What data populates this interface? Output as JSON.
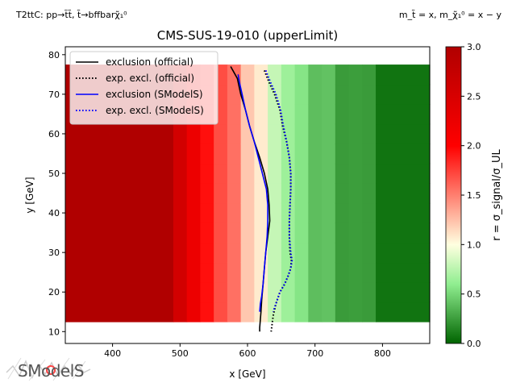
{
  "header": {
    "topleft": "T2ttC: pp→t̃t̃, t̃→bffbarχ̃₁⁰",
    "topright": "m_t̃ = x, m_χ̃₁⁰ = x − y"
  },
  "logo_text": "SModelS",
  "chart_data": {
    "type": "heatmap",
    "title": "CMS-SUS-19-010 (upperLimit)",
    "xlabel": "x [GeV]",
    "ylabel": "y [GeV]",
    "xlim": [
      330,
      870
    ],
    "ylim": [
      7,
      82
    ],
    "xticks": [
      400,
      500,
      600,
      700,
      800
    ],
    "yticks": [
      10,
      20,
      30,
      40,
      50,
      60,
      70,
      80
    ],
    "grid": false,
    "legend_position": "top-left",
    "colorbar": {
      "label": "r = σ_signal/σ_UL",
      "range": [
        0,
        3
      ],
      "ticks": [
        "0.0",
        "0.5",
        "1.0",
        "1.5",
        "2.0",
        "2.5",
        "3.0"
      ],
      "colors": {
        "low": "#006400",
        "mid_low": "#90ee90",
        "mid": "#ffffe0",
        "mid_high": "#ff0000",
        "high": "#b00000"
      }
    },
    "heatmap": {
      "x_range": [
        330,
        870
      ],
      "y_range": [
        12.5,
        77.5
      ],
      "x_step": 20,
      "y_step": 5,
      "column_edges_x": [
        330,
        490,
        510,
        530,
        550,
        570,
        590,
        610,
        630,
        650,
        670,
        690,
        710,
        730,
        750,
        770,
        790,
        870
      ],
      "column_values": [
        3.0,
        2.6,
        2.2,
        2.0,
        1.7,
        1.5,
        1.25,
        1.05,
        0.85,
        0.65,
        0.5,
        0.42,
        0.38,
        0.3,
        0.25,
        0.18,
        0.1
      ]
    },
    "series": [
      {
        "name": "exclusion (official)",
        "style": "solid",
        "color": "#000000",
        "x": [
          575,
          585,
          590,
          597,
          603,
          610,
          618,
          625,
          630,
          632,
          633,
          630,
          627,
          625,
          623,
          621,
          620,
          619,
          618,
          618
        ],
        "y": [
          77,
          74,
          70,
          66,
          62,
          58,
          54,
          50,
          46,
          42,
          38,
          34,
          30,
          26,
          22,
          18,
          15,
          13,
          11,
          10
        ]
      },
      {
        "name": "exp. excl. (official)",
        "style": "dotted",
        "color": "#000000",
        "x": [
          625,
          632,
          640,
          648,
          652,
          658,
          662,
          664,
          664,
          663,
          662,
          662,
          663,
          665,
          664,
          660,
          655,
          648,
          642,
          638,
          635
        ],
        "y": [
          76,
          73,
          70,
          66,
          62,
          58,
          54,
          50,
          46,
          42,
          38,
          34,
          30,
          28,
          26,
          24,
          22,
          20,
          17,
          14,
          10
        ]
      },
      {
        "name": "exclusion (SModelS)",
        "style": "solid",
        "color": "#0000ff",
        "x": [
          586,
          588,
          592,
          597,
          603,
          610,
          616,
          622,
          628,
          630,
          630,
          629,
          627,
          625,
          623,
          621,
          619,
          618
        ],
        "y": [
          75,
          73,
          70,
          66,
          62,
          58,
          54,
          50,
          46,
          42,
          38,
          34,
          30,
          26,
          22,
          19,
          17,
          15
        ]
      },
      {
        "name": "exp. excl. (SModelS)",
        "style": "dotted",
        "color": "#0000ff",
        "x": [
          627,
          634,
          642,
          649,
          653,
          658,
          662,
          664,
          664,
          663,
          662,
          662,
          664,
          666,
          664,
          660,
          655,
          648,
          642,
          638
        ],
        "y": [
          76,
          73,
          70,
          66,
          62,
          58,
          54,
          50,
          46,
          42,
          38,
          34,
          30,
          28,
          26,
          24,
          22,
          20,
          17,
          15
        ]
      }
    ]
  }
}
